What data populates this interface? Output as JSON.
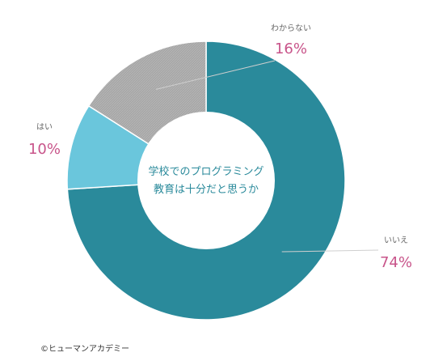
{
  "chart_data": {
    "type": "pie",
    "style": "donut",
    "center_label": [
      "学校でのプログラミング",
      "教育は十分だと思うか"
    ],
    "slices": [
      {
        "label": "いいえ",
        "percent_label": "74%",
        "value": 74,
        "color": "#2a8a9b"
      },
      {
        "label": "はい",
        "percent_label": "10%",
        "value": 10,
        "color": "#6ac6dc"
      },
      {
        "label": "わからない",
        "percent_label": "16%",
        "value": 16,
        "color": "#a6a6a6",
        "pattern": "hatched"
      }
    ],
    "label_color": "#666666",
    "percent_color": "#c8548a"
  },
  "footer": {
    "copyright": "©ヒューマンアカデミー"
  }
}
